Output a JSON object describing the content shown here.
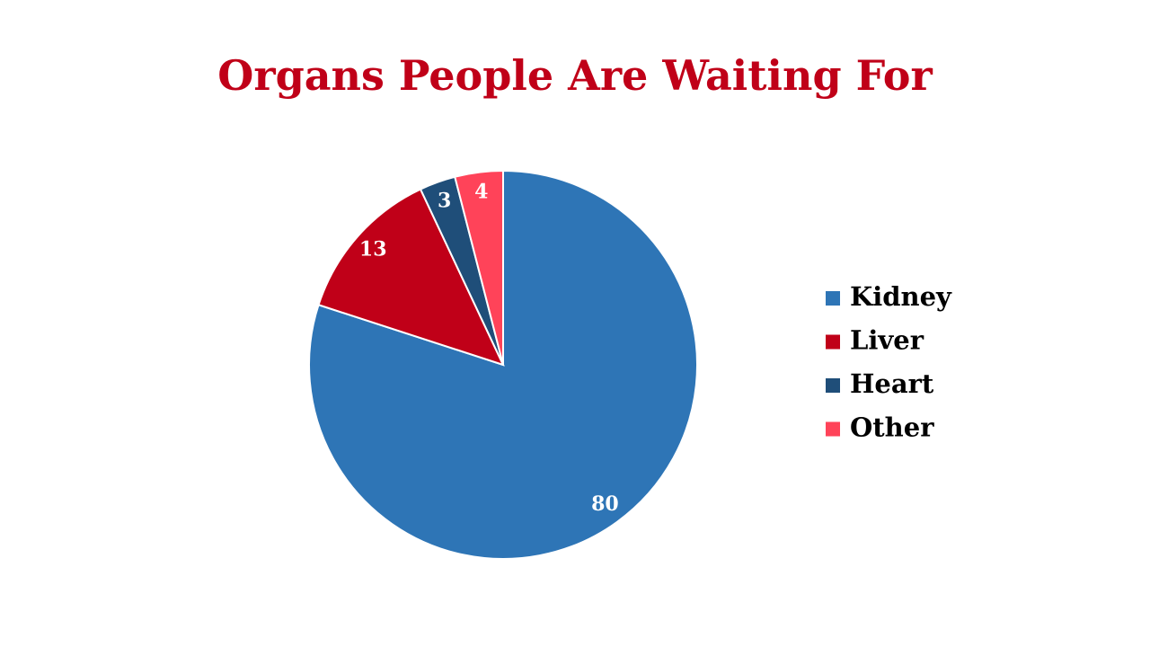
{
  "chart_data": {
    "type": "pie",
    "title": "Organs People Are Waiting For",
    "categories": [
      "Kidney",
      "Liver",
      "Heart",
      "Other"
    ],
    "values": [
      80,
      13,
      3,
      4
    ],
    "colors": [
      "#2e75b6",
      "#c00018",
      "#1f4e79",
      "#ff4359"
    ],
    "legend": "right"
  }
}
